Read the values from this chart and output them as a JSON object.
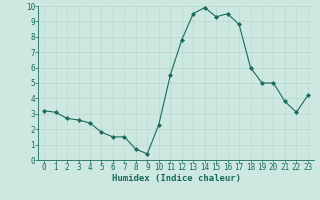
{
  "x": [
    0,
    1,
    2,
    3,
    4,
    5,
    6,
    7,
    8,
    9,
    10,
    11,
    12,
    13,
    14,
    15,
    16,
    17,
    18,
    19,
    20,
    21,
    22,
    23
  ],
  "y": [
    3.2,
    3.1,
    2.7,
    2.6,
    2.4,
    1.8,
    1.5,
    1.5,
    0.7,
    0.4,
    2.3,
    5.5,
    7.8,
    9.5,
    9.9,
    9.3,
    9.5,
    8.8,
    6.0,
    5.0,
    5.0,
    3.8,
    3.1,
    4.2
  ],
  "line_color": "#1a6b5a",
  "marker_color": "#1a6b5a",
  "bg_color": "#cce8e0",
  "grid_color": "#b8d8ce",
  "xlabel": "Humidex (Indice chaleur)",
  "xlim": [
    -0.5,
    23.5
  ],
  "ylim": [
    0,
    10
  ],
  "xticks": [
    0,
    1,
    2,
    3,
    4,
    5,
    6,
    7,
    8,
    9,
    10,
    11,
    12,
    13,
    14,
    15,
    16,
    17,
    18,
    19,
    20,
    21,
    22,
    23
  ],
  "yticks": [
    0,
    1,
    2,
    3,
    4,
    5,
    6,
    7,
    8,
    9,
    10
  ],
  "tick_color": "#1a6b5a",
  "label_color": "#1a6b5a",
  "font_size": 5.5,
  "xlabel_fontsize": 6.5
}
